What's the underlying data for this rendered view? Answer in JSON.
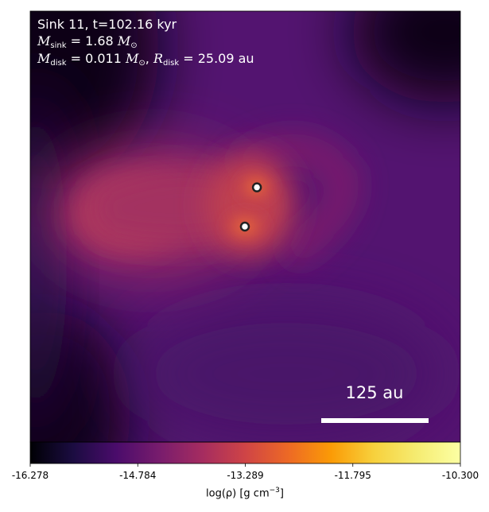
{
  "chart_data": {
    "type": "heatmap",
    "colormap": "inferno",
    "annotation": {
      "line1": "Sink 11, t=102.16 kyr",
      "msink_symbol": "M",
      "msink_sub": "sink",
      "msink_value": " = 1.68 ",
      "mdisk_symbol": "M",
      "mdisk_sub": "disk",
      "mdisk_value": " = 0.011 ",
      "rdisk_symbol": "R",
      "rdisk_sub": "disk",
      "rdisk_value": " = 25.09 au",
      "msun": "M",
      "msun_sub": "⊙"
    },
    "scale_bar": {
      "label": "125 au",
      "length_au": 125
    },
    "sinks": [
      {
        "name": "sink-a",
        "x_frac": 0.527,
        "y_frac": 0.409
      },
      {
        "name": "sink-b",
        "x_frac": 0.499,
        "y_frac": 0.5
      }
    ],
    "colorbar": {
      "vmin": -16.278,
      "vmax": -10.3,
      "ticks": [
        "-16.278",
        "-14.784",
        "-13.289",
        "-11.795",
        "-10.300"
      ],
      "label_prefix": "log(ρ) [g cm",
      "label_exp": "−3",
      "label_suffix": "]"
    }
  }
}
